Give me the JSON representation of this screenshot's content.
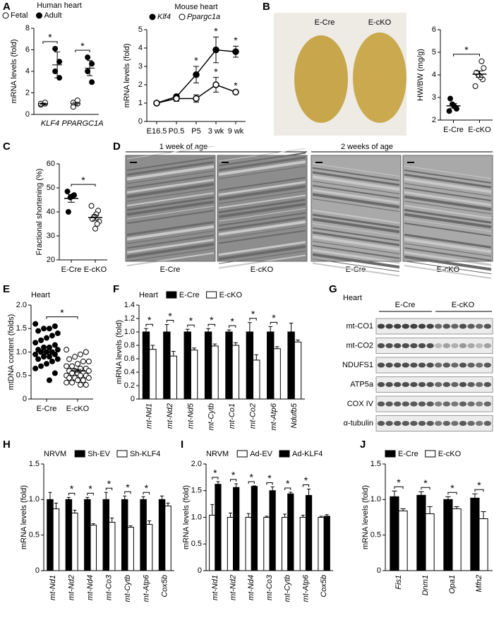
{
  "panel_labels": [
    "A",
    "B",
    "C",
    "D",
    "E",
    "F",
    "G",
    "H",
    "I",
    "J"
  ],
  "panel_b": {
    "labels": [
      "E-Cre",
      "E-cKO"
    ]
  },
  "panel_d": {
    "headers": [
      "1 week of age",
      "2 weeks of age"
    ],
    "labels": [
      "E-Cre",
      "E-cKO",
      "E-Cre",
      "E-cKO"
    ]
  },
  "panel_g": {
    "title": "Heart",
    "groups": [
      "E-Cre",
      "E-cKO"
    ],
    "rows": [
      "mt-CO1",
      "mt-CO2",
      "NDUFS1",
      "ATP5a",
      "COX IV",
      "α-tubulin"
    ]
  },
  "chart_data": [
    {
      "type": "grouped_dot",
      "title": "Human heart",
      "ylabel": "mRNA levels (fold)",
      "categories": [
        "KLF4",
        "PPARGC1A"
      ],
      "series": [
        {
          "name": "Fetal",
          "marker_fill": "#ffffff",
          "means": [
            1.0,
            1.0
          ],
          "errors": [
            0.05,
            0.12
          ],
          "points": [
            [
              0.9,
              1.0,
              1.0,
              1.1
            ],
            [
              0.7,
              1.0,
              1.1,
              1.3
            ]
          ]
        },
        {
          "name": "Adult",
          "marker_fill": "#000000",
          "means": [
            4.6,
            4.3
          ],
          "errors": [
            1.2,
            0.7
          ],
          "points": [
            [
              6.1,
              4.9,
              4.0,
              3.4
            ],
            [
              5.3,
              4.7,
              4.0,
              3.0
            ]
          ]
        }
      ],
      "significance": [
        "*",
        "*"
      ],
      "ylim": [
        0,
        8
      ],
      "yticks": [
        0,
        2,
        4,
        6,
        8
      ]
    },
    {
      "type": "line",
      "title": "Mouse heart",
      "ylabel": "mRNA levels (fold)",
      "categories": [
        "E16.5",
        "P0.5",
        "P5",
        "3 wk",
        "9 wk"
      ],
      "series": [
        {
          "name": "Klf4",
          "marker_fill": "#000000",
          "values": [
            1.0,
            1.35,
            2.55,
            3.9,
            3.8
          ],
          "errors": [
            0.05,
            0.1,
            0.45,
            0.7,
            0.3
          ],
          "significance": [
            null,
            null,
            "*",
            "*",
            "*"
          ]
        },
        {
          "name": "Ppargc1a",
          "marker_fill": "#ffffff",
          "values": [
            1.0,
            1.25,
            1.25,
            2.0,
            1.6
          ],
          "errors": [
            0.05,
            0.15,
            0.2,
            0.4,
            0.05
          ],
          "significance": [
            null,
            null,
            null,
            "*",
            "*"
          ]
        }
      ],
      "ylim": [
        0,
        5
      ],
      "yticks": [
        0,
        1,
        2,
        3,
        4,
        5
      ]
    },
    {
      "type": "dot",
      "ylabel": "HW/BW (mg/g)",
      "categories": [
        "E-Cre",
        "E-cKO"
      ],
      "marker_fills": [
        "#000000",
        "#ffffff"
      ],
      "means": [
        2.63,
        4.03
      ],
      "errors": [
        0.1,
        0.14
      ],
      "points": [
        [
          2.4,
          2.5,
          2.6,
          2.7,
          2.95
        ],
        [
          3.5,
          3.8,
          3.9,
          4.0,
          4.1,
          4.3,
          4.6
        ]
      ],
      "significance": "*",
      "ylim": [
        2,
        6
      ],
      "yticks": [
        2,
        3,
        4,
        5,
        6
      ]
    },
    {
      "type": "dot",
      "ylabel": "Fractional shortening (%)",
      "categories": [
        "E-Cre",
        "E-cKO"
      ],
      "marker_fills": [
        "#000000",
        "#ffffff"
      ],
      "means": [
        45.6,
        37.6
      ],
      "errors": [
        1.6,
        1.1
      ],
      "points": [
        [
          48.5,
          47,
          46.5,
          46,
          40
        ],
        [
          42.5,
          40.5,
          39,
          38,
          37,
          36,
          35,
          33
        ]
      ],
      "significance": "*",
      "ylim": [
        20,
        60
      ],
      "yticks": [
        20,
        30,
        40,
        50,
        60
      ]
    },
    {
      "type": "dot",
      "title": "Heart",
      "ylabel": "mtDNA content (folds)",
      "categories": [
        "E-Cre",
        "E-cKO"
      ],
      "marker_fills": [
        "#000000",
        "#ffffff"
      ],
      "means": [
        1.0,
        0.6
      ],
      "errors": [
        0.04,
        0.03
      ],
      "points": [
        [
          1.6,
          1.55,
          1.5,
          1.5,
          1.45,
          1.4,
          1.35,
          1.3,
          1.25,
          1.2,
          1.15,
          1.1,
          1.1,
          1.05,
          1.05,
          1.0,
          1.0,
          1.0,
          0.95,
          0.95,
          0.9,
          0.9,
          0.85,
          0.85,
          0.8,
          0.75,
          0.7,
          0.65,
          0.55,
          0.4
        ],
        [
          1.05,
          1.0,
          0.95,
          0.9,
          0.85,
          0.8,
          0.8,
          0.75,
          0.7,
          0.7,
          0.65,
          0.65,
          0.6,
          0.6,
          0.6,
          0.55,
          0.55,
          0.55,
          0.5,
          0.5,
          0.5,
          0.45,
          0.45,
          0.45,
          0.4,
          0.4,
          0.35,
          0.35,
          0.3,
          0.3
        ]
      ],
      "significance": "*",
      "ylim": [
        0,
        2
      ],
      "yticks": [
        0,
        0.5,
        {
          "value": 1,
          "label": "1.0"
        },
        1.5,
        {
          "value": 2,
          "label": "2.0"
        }
      ]
    },
    {
      "type": "bar",
      "title": "Heart",
      "ylabel": "mRNA levels (fold)",
      "categories": [
        "mt-Nd1",
        "mt-Nd2",
        "mt-Nd5",
        "mt-Cytb",
        "mt-Co1",
        "mt-Co2",
        "mt-Atp6",
        "Ndufb5"
      ],
      "series": [
        {
          "name": "E-Cre",
          "color": "#000000",
          "values": [
            1.0,
            1.0,
            1.0,
            1.0,
            1.0,
            1.0,
            1.0,
            1.0
          ],
          "errors": [
            0.05,
            0.11,
            0.04,
            0.05,
            0.03,
            0.14,
            0.08,
            0.13
          ]
        },
        {
          "name": "E-cKO",
          "color": "#ffffff",
          "values": [
            0.74,
            0.64,
            0.73,
            0.79,
            0.8,
            0.58,
            0.75,
            0.85
          ],
          "errors": [
            0.06,
            0.07,
            0.03,
            0.03,
            0.04,
            0.08,
            0.03,
            0.03
          ]
        }
      ],
      "significance": [
        "*",
        "*",
        "*",
        "*",
        "*",
        "*",
        "*",
        null
      ],
      "ylim": [
        0,
        1.4
      ],
      "yticks": [
        0,
        0.2,
        0.4,
        0.6,
        0.8,
        {
          "value": 1,
          "label": "1.0"
        },
        1.2,
        1.4
      ]
    },
    {
      "type": "bar",
      "title": "NRVM",
      "ylabel": "mRNA levels (fold)",
      "categories": [
        "mt-Nd1",
        "mt-Nd2",
        "mt-Nd4",
        "mt-Co3",
        "mt-Cytb",
        "mt-Atp6",
        "Cox5b"
      ],
      "series": [
        {
          "name": "Sh-EV",
          "color": "#000000",
          "values": [
            1.0,
            1.0,
            1.0,
            1.0,
            1.0,
            1.0,
            1.0
          ],
          "errors": [
            0.1,
            0.03,
            0.03,
            0.1,
            0.05,
            0.04,
            0.05
          ]
        },
        {
          "name": "Sh-KLF4",
          "color": "#ffffff",
          "values": [
            0.87,
            0.81,
            0.64,
            0.68,
            0.61,
            0.65,
            0.91
          ],
          "errors": [
            0.08,
            0.04,
            0.02,
            0.06,
            0.02,
            0.05,
            0.04
          ]
        }
      ],
      "significance": [
        null,
        "*",
        "*",
        "*",
        "*",
        "*",
        null
      ],
      "ylim": [
        0,
        1.5
      ],
      "yticks": [
        0,
        0.5,
        {
          "value": 1,
          "label": "1.0"
        },
        1.5
      ]
    },
    {
      "type": "bar",
      "title": "NRVM",
      "ylabel": "mRNA levels (fold)",
      "categories": [
        "mt-Nd1",
        "mt-Nd2",
        "mt-Nd4",
        "mt-Co3",
        "mt-Cytb",
        "mt-Atp6",
        "Cox5b"
      ],
      "series": [
        {
          "name": "Ad-EV",
          "color": "#ffffff",
          "values": [
            1.04,
            1.0,
            1.0,
            1.0,
            1.0,
            1.0,
            1.0
          ],
          "errors": [
            0.2,
            0.08,
            0.07,
            0.02,
            0.06,
            0.04,
            0.02
          ]
        },
        {
          "name": "Ad-KLF4",
          "color": "#000000",
          "values": [
            1.62,
            1.56,
            1.58,
            1.5,
            1.44,
            1.41,
            1.02
          ],
          "errors": [
            0.05,
            0.07,
            0.01,
            0.07,
            0.03,
            0.12,
            0.03
          ]
        }
      ],
      "significance": [
        "*",
        "*",
        "*",
        "*",
        "*",
        "*",
        null
      ],
      "ylim": [
        0,
        2
      ],
      "yticks": [
        0,
        0.5,
        {
          "value": 1,
          "label": "1.0"
        },
        1.5,
        {
          "value": 2,
          "label": "2.0"
        }
      ]
    },
    {
      "type": "bar",
      "ylabel": "mRNA levels (fold)",
      "categories": [
        "Fis1",
        "Dnm1",
        "Opa1",
        "Mfn2"
      ],
      "series": [
        {
          "name": "E-Cre",
          "color": "#000000",
          "values": [
            1.04,
            1.06,
            1.0,
            1.02
          ],
          "errors": [
            0.08,
            0.05,
            0.04,
            0.06
          ]
        },
        {
          "name": "E-cKO",
          "color": "#ffffff",
          "values": [
            0.84,
            0.8,
            0.87,
            0.73
          ],
          "errors": [
            0.03,
            0.1,
            0.03,
            0.1
          ]
        }
      ],
      "significance": [
        "*",
        "*",
        "*",
        "*"
      ],
      "ylim": [
        0,
        1.5
      ],
      "yticks": [
        0,
        0.5,
        {
          "value": 1,
          "label": "1.0"
        },
        1.5
      ]
    }
  ]
}
